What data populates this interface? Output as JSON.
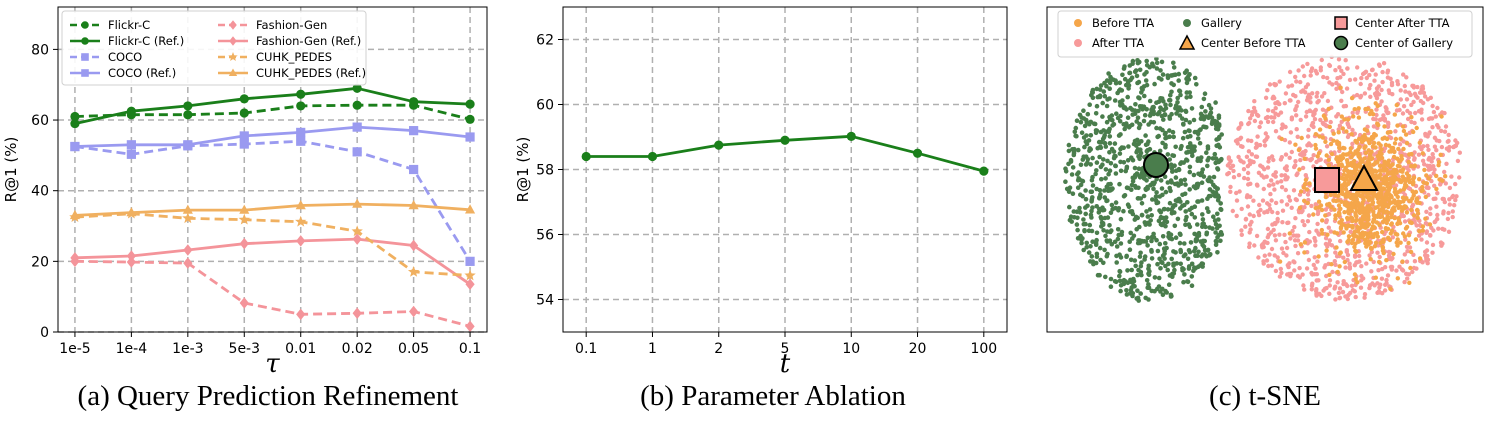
{
  "chart_data": [
    {
      "id": "a",
      "type": "line",
      "caption": "(a) Query Prediction Refinement",
      "xlabel": "τ",
      "ylabel": "R@1 (%)",
      "categories": [
        "1e-5",
        "1e-4",
        "1e-3",
        "5e-3",
        "0.01",
        "0.02",
        "0.05",
        "0.1"
      ],
      "ylim": [
        0,
        92
      ],
      "yticks": [
        0,
        20,
        40,
        60,
        80
      ],
      "grid": true,
      "legend": "top-left, 2 columns",
      "series": [
        {
          "name": "Flickr-C",
          "color": "#1a7f1a",
          "dash": true,
          "marker": "circle",
          "values": [
            61.0,
            61.5,
            61.5,
            62.0,
            64.0,
            64.2,
            64.2,
            60.2
          ]
        },
        {
          "name": "Flickr-C (Ref.)",
          "color": "#1a7f1a",
          "dash": false,
          "marker": "circle",
          "values": [
            59.0,
            62.5,
            64.0,
            66.0,
            67.3,
            69.0,
            65.2,
            64.5
          ]
        },
        {
          "name": "COCO",
          "color": "#9a9af0",
          "dash": true,
          "marker": "square",
          "values": [
            52.5,
            50.3,
            52.7,
            53.2,
            54.0,
            51.0,
            46.0,
            20.0
          ]
        },
        {
          "name": "COCO (Ref.)",
          "color": "#9a9af0",
          "dash": false,
          "marker": "square",
          "values": [
            52.5,
            53.0,
            53.0,
            55.5,
            56.5,
            58.0,
            57.0,
            55.2
          ]
        },
        {
          "name": "Fashion-Gen",
          "color": "#f4949a",
          "dash": true,
          "marker": "diamond",
          "values": [
            20.0,
            19.8,
            19.5,
            8.2,
            5.0,
            5.3,
            5.8,
            1.6
          ]
        },
        {
          "name": "Fashion-Gen (Ref.)",
          "color": "#f4949a",
          "dash": false,
          "marker": "diamond",
          "values": [
            21.0,
            21.5,
            23.2,
            25.0,
            25.8,
            26.3,
            24.5,
            13.5
          ]
        },
        {
          "name": "CUHK_PEDES",
          "color": "#f0b060",
          "dash": true,
          "marker": "star",
          "values": [
            32.5,
            33.5,
            32.2,
            31.8,
            31.2,
            28.5,
            17.0,
            16.0
          ]
        },
        {
          "name": "CUHK_PEDES (Ref.)",
          "color": "#f0b060",
          "dash": false,
          "marker": "triangle",
          "values": [
            33.0,
            33.8,
            34.5,
            34.5,
            35.8,
            36.2,
            35.8,
            34.6
          ]
        }
      ]
    },
    {
      "id": "b",
      "type": "line",
      "caption": "(b) Parameter Ablation",
      "xlabel": "t",
      "ylabel": "R@1 (%)",
      "categories": [
        "0.1",
        "1",
        "2",
        "5",
        "10",
        "20",
        "100"
      ],
      "ylim": [
        53,
        63
      ],
      "yticks": [
        54,
        56,
        58,
        60,
        62
      ],
      "grid": true,
      "series": [
        {
          "color": "#1a7f1a",
          "marker": "circle",
          "values": [
            58.4,
            58.4,
            58.75,
            58.9,
            59.02,
            58.5,
            57.95
          ]
        }
      ]
    },
    {
      "id": "c",
      "type": "scatter",
      "caption": "(c) t-SNE",
      "legend": "top, 3 columns",
      "legend_items": [
        {
          "label": "Before TTA",
          "color": "#f5a64a",
          "marker": "dot"
        },
        {
          "label": "After TTA",
          "color": "#f79a9a",
          "marker": "dot"
        },
        {
          "label": "Gallery",
          "color": "#4a7d4c",
          "marker": "dot"
        },
        {
          "label": "Center Before TTA",
          "color": "#f5a64a",
          "marker": "triangle"
        },
        {
          "label": "Center After TTA",
          "color": "#f79a9a",
          "marker": "square"
        },
        {
          "label": "Center of Gallery",
          "color": "#4a7d4c",
          "marker": "circle"
        }
      ]
    }
  ]
}
